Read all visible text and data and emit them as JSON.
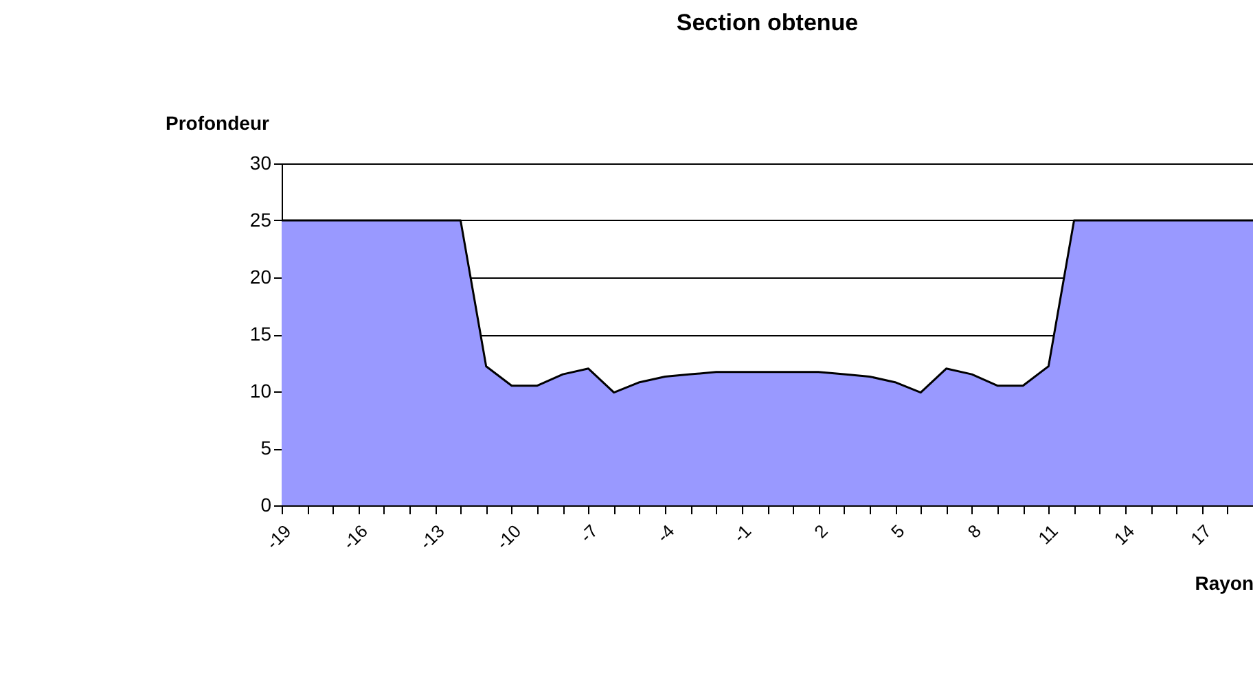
{
  "chart_data": {
    "type": "area",
    "title": "Section obtenue",
    "xlabel": "Rayon",
    "ylabel": "Profondeur",
    "categories": [
      "-19",
      null,
      null,
      "-16",
      null,
      null,
      "-13",
      null,
      null,
      "-10",
      null,
      null,
      "-7",
      null,
      null,
      "-4",
      null,
      null,
      "-1",
      null,
      null,
      "2",
      null,
      null,
      "5",
      null,
      null,
      "8",
      null,
      null,
      "11",
      null,
      null,
      "14",
      null,
      null,
      "17",
      null,
      null
    ],
    "series": [
      {
        "color": "#9999ff",
        "values": [
          25,
          25,
          25,
          25,
          25,
          25,
          25,
          25,
          12.2,
          10.5,
          10.5,
          11.5,
          12.0,
          9.9,
          10.8,
          11.3,
          11.5,
          11.7,
          11.7,
          11.7,
          11.7,
          11.7,
          11.5,
          11.3,
          10.8,
          9.9,
          12.0,
          11.5,
          10.5,
          10.5,
          12.2,
          25,
          25,
          25,
          25,
          25,
          25,
          25,
          25
        ]
      }
    ],
    "ylim": [
      0,
      30
    ],
    "yticks": [
      0,
      5,
      10,
      15,
      20,
      25,
      30
    ],
    "grid": "y"
  }
}
